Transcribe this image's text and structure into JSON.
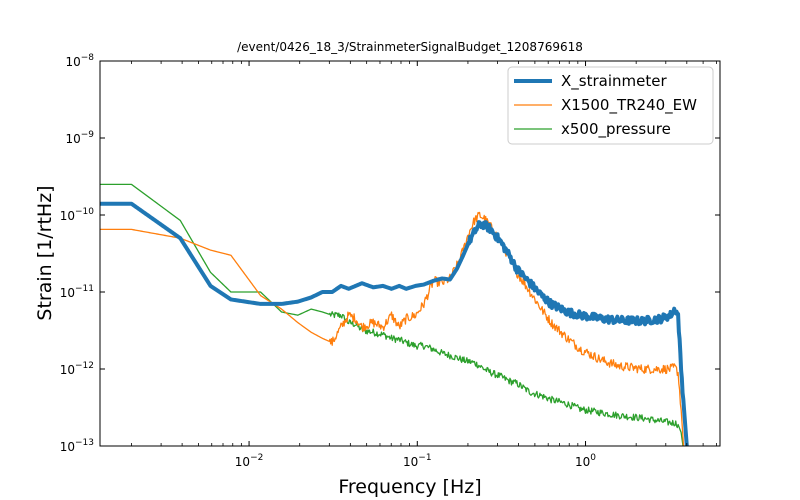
{
  "chart_data": {
    "type": "line",
    "title": "/event/0426_18_3/StrainmeterSignalBudget_1208769618",
    "xlabel": "Frequency [Hz]",
    "ylabel": "Strain [1/rtHz]",
    "xscale": "log",
    "yscale": "log",
    "xlim": [
      0.0013,
      6.3
    ],
    "ylim": [
      1e-13,
      1e-08
    ],
    "grid": false,
    "legend_position": "top-right",
    "x_ticks": [
      {
        "base": "10",
        "exp": "−2",
        "value": 0.01
      },
      {
        "base": "10",
        "exp": "−1",
        "value": 0.1
      },
      {
        "base": "10",
        "exp": "0",
        "value": 1
      }
    ],
    "y_ticks": [
      {
        "base": "10",
        "exp": "−13",
        "value": 1e-13
      },
      {
        "base": "10",
        "exp": "−12",
        "value": 1e-12
      },
      {
        "base": "10",
        "exp": "−11",
        "value": 1e-11
      },
      {
        "base": "10",
        "exp": "−10",
        "value": 1e-10
      },
      {
        "base": "10",
        "exp": "−9",
        "value": 1e-09
      },
      {
        "base": "10",
        "exp": "−8",
        "value": 1e-08
      }
    ],
    "series": [
      {
        "name": "X_strainmeter",
        "color": "#1f77b4",
        "line_width": 4,
        "x": [
          0.0013,
          0.002,
          0.0039,
          0.0059,
          0.0078,
          0.0117,
          0.0156,
          0.0195,
          0.0234,
          0.0273,
          0.0312,
          0.0352,
          0.0391,
          0.043,
          0.0469,
          0.0547,
          0.0625,
          0.0703,
          0.0781,
          0.0859,
          0.0977,
          0.1094,
          0.125,
          0.1406,
          0.1563,
          0.1719,
          0.1875,
          0.2031,
          0.2188,
          0.2344,
          0.25,
          0.2734,
          0.3125,
          0.3516,
          0.3906,
          0.4688,
          0.5469,
          0.625,
          0.7813,
          0.9375,
          1.25,
          1.5625,
          2.1875,
          2.8125,
          3.2,
          3.4,
          3.55,
          3.7,
          3.85,
          4.0
        ],
        "y": [
          1.4e-10,
          1.4e-10,
          5e-11,
          1.2e-11,
          8e-12,
          7e-12,
          7e-12,
          7.5e-12,
          8.5e-12,
          1e-11,
          1e-11,
          1.2e-11,
          1.1e-11,
          1.2e-11,
          1.3e-11,
          1.15e-11,
          1.2e-11,
          1.1e-11,
          1.2e-11,
          1.1e-11,
          1.2e-11,
          1.25e-11,
          1.4e-11,
          1.5e-11,
          1.45e-11,
          2e-11,
          3e-11,
          4.5e-11,
          6e-11,
          7.5e-11,
          7.5e-11,
          6.5e-11,
          4.5e-11,
          3e-11,
          2e-11,
          1.3e-11,
          9e-12,
          7e-12,
          5.5e-12,
          5e-12,
          4.5e-12,
          4.3e-12,
          4.2e-12,
          4.5e-12,
          5e-12,
          6e-12,
          5e-12,
          1e-12,
          3e-13,
          1e-13
        ]
      },
      {
        "name": "X1500_TR240_EW",
        "color": "#ff7f0e",
        "line_width": 1.3,
        "x": [
          0.0013,
          0.002,
          0.0039,
          0.0059,
          0.0078,
          0.0117,
          0.0156,
          0.0195,
          0.0234,
          0.0273,
          0.0312,
          0.0352,
          0.0391,
          0.043,
          0.0469,
          0.0547,
          0.0625,
          0.0703,
          0.0781,
          0.0859,
          0.0977,
          0.1094,
          0.125,
          0.1406,
          0.1563,
          0.1719,
          0.1875,
          0.2031,
          0.2188,
          0.2344,
          0.25,
          0.2734,
          0.3125,
          0.3516,
          0.3906,
          0.4688,
          0.5469,
          0.625,
          0.7813,
          0.9375,
          1.25,
          1.5625,
          2.1875,
          2.8125,
          3.2,
          3.4,
          3.55,
          3.7,
          3.85
        ],
        "y": [
          6.5e-11,
          6.5e-11,
          5e-11,
          3.5e-11,
          3e-11,
          9e-12,
          6e-12,
          4e-12,
          3e-12,
          2.5e-12,
          2.2e-12,
          3.5e-12,
          5e-12,
          4.5e-12,
          3.5e-12,
          4e-12,
          3.5e-12,
          5e-12,
          3.5e-12,
          4.5e-12,
          5e-12,
          7e-12,
          1.4e-11,
          1.3e-11,
          1.5e-11,
          2.2e-11,
          3.5e-11,
          6e-11,
          8.5e-11,
          1e-10,
          9e-11,
          7e-11,
          4.5e-11,
          2.8e-11,
          1.8e-11,
          1e-11,
          6e-12,
          4e-12,
          2.5e-12,
          1.8e-12,
          1.3e-12,
          1.1e-12,
          1e-12,
          1e-12,
          1e-12,
          1.05e-12,
          9e-13,
          3e-13,
          8e-14
        ]
      },
      {
        "name": "x500_pressure",
        "color": "#2ca02c",
        "line_width": 1.3,
        "x": [
          0.0013,
          0.002,
          0.0039,
          0.0059,
          0.0078,
          0.0117,
          0.0156,
          0.0195,
          0.0234,
          0.0273,
          0.0312,
          0.0352,
          0.0391,
          0.043,
          0.0469,
          0.0547,
          0.0625,
          0.0703,
          0.0781,
          0.0859,
          0.0977,
          0.1094,
          0.125,
          0.1406,
          0.1563,
          0.1719,
          0.1875,
          0.2031,
          0.2188,
          0.2344,
          0.25,
          0.2734,
          0.3125,
          0.3516,
          0.3906,
          0.4688,
          0.5469,
          0.625,
          0.7813,
          0.9375,
          1.25,
          1.5625,
          2.1875,
          2.8125,
          3.2,
          3.4,
          3.55,
          3.7,
          3.85
        ],
        "y": [
          2.5e-10,
          2.5e-10,
          8.5e-11,
          1.8e-11,
          1e-11,
          1e-11,
          5.5e-12,
          5e-12,
          6e-12,
          5.5e-12,
          5e-12,
          5e-12,
          4e-12,
          3.8e-12,
          3.2e-12,
          3e-12,
          2.8e-12,
          2.5e-12,
          2.4e-12,
          2.2e-12,
          2e-12,
          2e-12,
          1.8e-12,
          1.6e-12,
          1.5e-12,
          1.4e-12,
          1.3e-12,
          1.25e-12,
          1.2e-12,
          1.1e-12,
          1e-12,
          9e-13,
          8e-13,
          7e-13,
          6.5e-13,
          5e-13,
          4.5e-13,
          4e-13,
          3.5e-13,
          3e-13,
          2.7e-13,
          2.5e-13,
          2.3e-13,
          2.1e-13,
          2e-13,
          2e-13,
          1.9e-13,
          1.5e-13,
          8e-14
        ]
      }
    ]
  }
}
